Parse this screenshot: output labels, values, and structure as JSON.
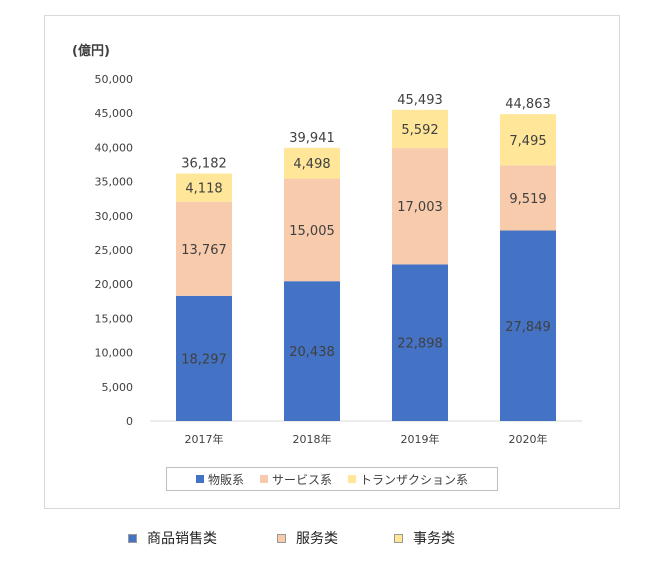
{
  "unit_label": "(億円)",
  "chart_data": {
    "type": "bar",
    "stacked": true,
    "categories": [
      "2017年",
      "2018年",
      "2019年",
      "2020年"
    ],
    "ylim": [
      0,
      50000
    ],
    "yticks": [
      0,
      5000,
      10000,
      15000,
      20000,
      25000,
      30000,
      35000,
      40000,
      45000,
      50000
    ],
    "ytick_labels": [
      "0",
      "5,000",
      "10,000",
      "15,000",
      "20,000",
      "25,000",
      "30,000",
      "35,000",
      "40,000",
      "45,000",
      "50,000"
    ],
    "series": [
      {
        "name": "物販系",
        "color": "#4472c4",
        "values": [
          18297,
          20438,
          22898,
          27849
        ],
        "labels": [
          "18,297",
          "20,438",
          "22,898",
          "27,849"
        ]
      },
      {
        "name": "サービス系",
        "color": "#f8cbad",
        "values": [
          13767,
          15005,
          17003,
          9519
        ],
        "labels": [
          "13,767",
          "15,005",
          "17,003",
          "9,519"
        ]
      },
      {
        "name": "トランザクション系",
        "color": "#ffe699",
        "values": [
          4118,
          4498,
          5592,
          7495
        ],
        "labels": [
          "4,118",
          "4,498",
          "5,592",
          "7,495"
        ]
      }
    ],
    "totals": [
      36182,
      39941,
      45493,
      44863
    ],
    "total_labels": [
      "36,182",
      "39,941",
      "45,493",
      "44,863"
    ],
    "legend_position": "bottom",
    "grid": false
  },
  "bottom_legend": [
    {
      "label": "商品销售类",
      "color": "#4472c4"
    },
    {
      "label": "服务类",
      "color": "#f8cbad"
    },
    {
      "label": "事务类",
      "color": "#ffe699"
    }
  ]
}
